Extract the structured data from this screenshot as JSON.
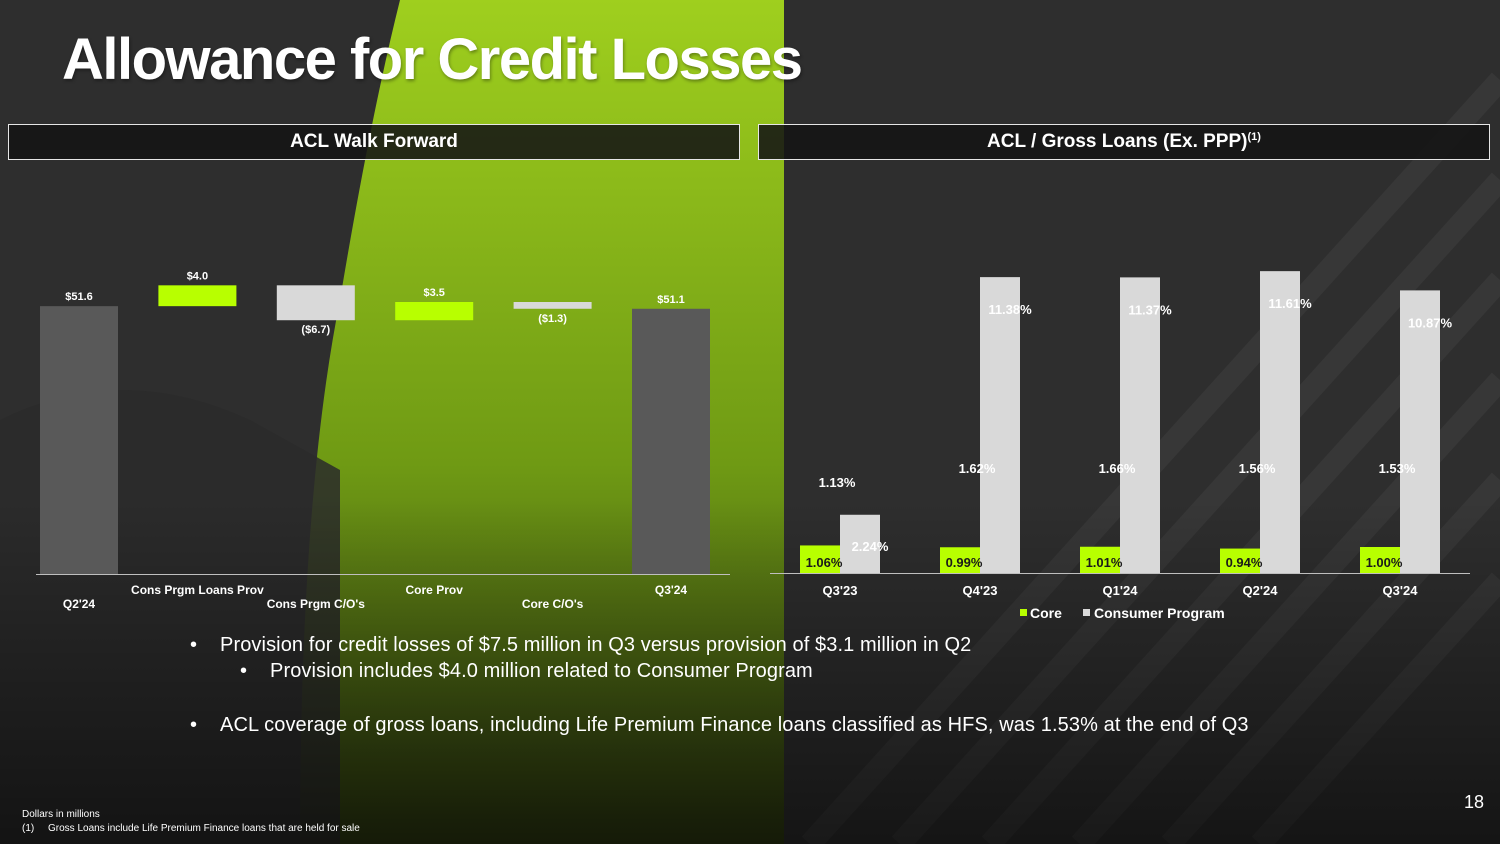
{
  "title": "Allowance for Credit Losses",
  "colors": {
    "lime": "#b8ff00",
    "light_gray": "#d9d9d9",
    "dark_gray": "#595959",
    "background": "#2b2b2b",
    "text": "#ffffff"
  },
  "panels": {
    "left_header": "ACL Walk Forward",
    "right_header": "ACL / Gross Loans (Ex. PPP)",
    "right_header_sup": "(1)"
  },
  "chart_data": [
    {
      "type": "bar",
      "subtype": "waterfall",
      "title": "ACL Walk Forward",
      "units": "Dollars in millions",
      "categories": [
        "Q2'24",
        "Cons Prgm Loans Prov",
        "Cons Prgm C/O's",
        "Core Prov",
        "Core C/O's",
        "Q3'24"
      ],
      "values": [
        51.6,
        4.0,
        -6.7,
        3.5,
        -1.3,
        51.1
      ],
      "kinds": [
        "total",
        "increase",
        "decrease",
        "increase",
        "decrease",
        "total"
      ],
      "data_labels": [
        "$51.6",
        "$4.0",
        "($6.7)",
        "$3.5",
        "($1.3)",
        "$51.1"
      ],
      "ylim": [
        0,
        58
      ]
    },
    {
      "type": "bar",
      "title": "ACL / Gross Loans (Ex. PPP)",
      "categories": [
        "Q3'23",
        "Q4'23",
        "Q1'24",
        "Q2'24",
        "Q3'24"
      ],
      "series": [
        {
          "name": "Core",
          "values": [
            1.06,
            0.99,
            1.01,
            0.94,
            1.0
          ],
          "labels": [
            "1.06%",
            "0.99%",
            "1.01%",
            "0.94%",
            "1.00%"
          ]
        },
        {
          "name": "Consumer Program",
          "values": [
            2.24,
            11.38,
            11.37,
            11.61,
            10.87
          ],
          "labels": [
            "2.24%",
            "11.38%",
            "11.37%",
            "11.61%",
            "10.87%"
          ]
        }
      ],
      "total_labels": [
        "1.13%",
        "1.62%",
        "1.66%",
        "1.56%",
        "1.53%"
      ],
      "legend": "bottom",
      "ylim": [
        0,
        13
      ]
    }
  ],
  "bullets": [
    "Provision for credit losses of $7.5 million in Q3 versus provision of $3.1 million in Q2",
    "Provision includes $4.0 million related to Consumer Program",
    "ACL coverage of gross loans, including Life Premium Finance loans classified as HFS, was 1.53% at the end of Q3"
  ],
  "bullet_marker": "•",
  "page_number": "18",
  "footnotes": {
    "units": "Dollars in millions",
    "note_num": "(1)",
    "note_text": "Gross Loans include Life Premium Finance loans that are held for sale"
  }
}
